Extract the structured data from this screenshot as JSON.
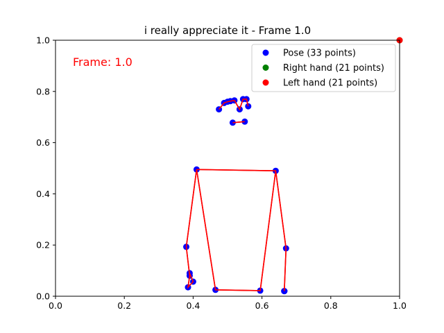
{
  "chart_data": {
    "type": "scatter",
    "title": "i really appreciate it - Frame 1.0",
    "annotation": "Frame: 1.0",
    "xlim": [
      0,
      1
    ],
    "ylim": [
      0,
      1
    ],
    "x_ticks": [
      0.0,
      0.2,
      0.4,
      0.6,
      0.8,
      1.0
    ],
    "y_ticks": [
      0.0,
      0.2,
      0.4,
      0.6,
      0.8,
      1.0
    ],
    "x_tick_labels": [
      "0.0",
      "0.2",
      "0.4",
      "0.6",
      "0.8",
      "1.0"
    ],
    "y_tick_labels": [
      "0.0",
      "0.2",
      "0.4",
      "0.6",
      "0.8",
      "1.0"
    ],
    "grid": false,
    "legend_position": "top-right",
    "legend": [
      {
        "label": "Pose (33 points)",
        "color": "#0000ff"
      },
      {
        "label": "Right hand (21 points)",
        "color": "#008000"
      },
      {
        "label": "Left hand (21 points)",
        "color": "#ff0000"
      }
    ],
    "series": [
      {
        "name": "Pose (33 points)",
        "color": "#0000ff",
        "x": [
          0.52,
          0.535,
          0.545,
          0.555,
          0.508,
          0.5,
          0.49,
          0.56,
          0.475,
          0.55,
          0.515,
          0.64,
          0.41,
          0.67,
          0.38,
          0.665,
          0.39,
          0.665,
          0.39,
          0.665,
          0.4,
          0.665,
          0.385,
          0.595,
          0.465
        ],
        "y": [
          0.765,
          0.73,
          0.77,
          0.77,
          0.762,
          0.76,
          0.755,
          0.742,
          0.73,
          0.682,
          0.678,
          0.49,
          0.495,
          0.187,
          0.193,
          0.02,
          0.09,
          0.02,
          0.08,
          0.02,
          0.057,
          0.02,
          0.035,
          0.022,
          0.025
        ]
      },
      {
        "name": "Right hand (21 points)",
        "color": "#008000",
        "x": [
          1.0
        ],
        "y": [
          1.0
        ]
      },
      {
        "name": "Left hand (21 points)",
        "color": "#ff0000",
        "x": [
          1.0
        ],
        "y": [
          1.0
        ]
      }
    ],
    "connections": {
      "color": "#ff0000",
      "lines": [
        {
          "x": [
            0.475,
            0.49,
            0.5,
            0.508,
            0.52
          ],
          "y": [
            0.73,
            0.755,
            0.76,
            0.762,
            0.765
          ]
        },
        {
          "x": [
            0.52,
            0.535,
            0.545,
            0.555,
            0.56
          ],
          "y": [
            0.765,
            0.73,
            0.77,
            0.77,
            0.742
          ]
        },
        {
          "x": [
            0.515,
            0.55
          ],
          "y": [
            0.678,
            0.682
          ]
        },
        {
          "x": [
            0.41,
            0.64,
            0.67,
            0.665
          ],
          "y": [
            0.495,
            0.49,
            0.187,
            0.02
          ]
        },
        {
          "x": [
            0.41,
            0.38,
            0.39,
            0.385,
            0.4,
            0.39
          ],
          "y": [
            0.495,
            0.193,
            0.08,
            0.035,
            0.057,
            0.09
          ]
        },
        {
          "x": [
            0.41,
            0.465,
            0.595,
            0.64
          ],
          "y": [
            0.495,
            0.025,
            0.022,
            0.49
          ]
        }
      ]
    }
  }
}
